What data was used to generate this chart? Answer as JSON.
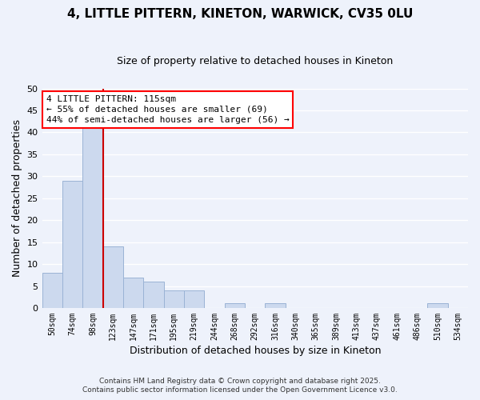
{
  "title": "4, LITTLE PITTERN, KINETON, WARWICK, CV35 0LU",
  "subtitle": "Size of property relative to detached houses in Kineton",
  "xlabel": "Distribution of detached houses by size in Kineton",
  "ylabel": "Number of detached properties",
  "bar_color": "#ccd9ee",
  "bar_edgecolor": "#9ab3d5",
  "vline_color": "#cc0000",
  "annotation_lines": [
    "4 LITTLE PITTERN: 115sqm",
    "← 55% of detached houses are smaller (69)",
    "44% of semi-detached houses are larger (56) →"
  ],
  "bin_edges": [
    50,
    74,
    98,
    122,
    146,
    170,
    194,
    218,
    242,
    266,
    290,
    314,
    338,
    362,
    386,
    410,
    434,
    458,
    482,
    506,
    530,
    554
  ],
  "bin_labels": [
    "50sqm",
    "74sqm",
    "98sqm",
    "123sqm",
    "147sqm",
    "171sqm",
    "195sqm",
    "219sqm",
    "244sqm",
    "268sqm",
    "292sqm",
    "316sqm",
    "340sqm",
    "365sqm",
    "389sqm",
    "413sqm",
    "437sqm",
    "461sqm",
    "486sqm",
    "510sqm",
    "534sqm"
  ],
  "counts": [
    8,
    29,
    41,
    14,
    7,
    6,
    4,
    4,
    0,
    1,
    0,
    1,
    0,
    0,
    0,
    0,
    0,
    0,
    0,
    1,
    0
  ],
  "ylim": [
    0,
    50
  ],
  "yticks": [
    0,
    5,
    10,
    15,
    20,
    25,
    30,
    35,
    40,
    45,
    50
  ],
  "footer_lines": [
    "Contains HM Land Registry data © Crown copyright and database right 2025.",
    "Contains public sector information licensed under the Open Government Licence v3.0."
  ],
  "bg_color": "#eef2fb",
  "grid_color": "#ffffff"
}
